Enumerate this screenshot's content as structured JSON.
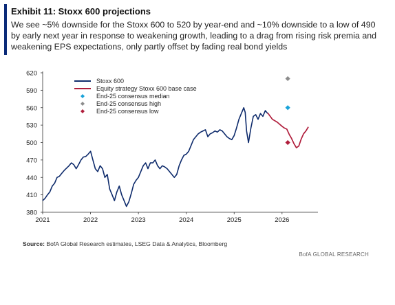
{
  "header": {
    "title": "Exhibit 11: Stoxx 600 projections",
    "subtitle": "We see ~5% downside for the Stoxx 600 to 520 by year-end and ~10% downside to a low of 490 by early next year in response to weakening growth, leading to a drag from rising risk premia and weakening EPS expectations, only partly offset by fading real bond yields"
  },
  "footer": {
    "source_label": "Source:",
    "source_text": "BofA Global Research estimates, LSEG Data & Analytics, Bloomberg",
    "brand": "BofA GLOBAL RESEARCH"
  },
  "colors": {
    "accent": "#0a2a78",
    "stoxx": "#0d2a6b",
    "base_case": "#b01e3c",
    "median": "#1aa3d9",
    "high": "#8c8c8c",
    "low": "#b01e3c"
  },
  "chart_data": {
    "type": "line",
    "title": "",
    "xlabel": "",
    "ylabel": "",
    "ylim": [
      380,
      620
    ],
    "xlim": [
      2021,
      2026.75
    ],
    "y_ticks": [
      380,
      410,
      440,
      470,
      500,
      530,
      560,
      590,
      620
    ],
    "x_ticks": [
      "2021",
      "2022",
      "2023",
      "2024",
      "2025",
      "2026"
    ],
    "grid": false,
    "legend_position": "top-left",
    "series": [
      {
        "name": "Stoxx 600",
        "type": "line",
        "x": [
          2021.0,
          2021.05,
          2021.1,
          2021.15,
          2021.2,
          2021.25,
          2021.3,
          2021.35,
          2021.4,
          2021.45,
          2021.5,
          2021.55,
          2021.6,
          2021.65,
          2021.7,
          2021.75,
          2021.8,
          2021.85,
          2021.9,
          2021.95,
          2022.0,
          2022.05,
          2022.1,
          2022.15,
          2022.2,
          2022.25,
          2022.3,
          2022.35,
          2022.4,
          2022.45,
          2022.5,
          2022.55,
          2022.6,
          2022.65,
          2022.7,
          2022.75,
          2022.8,
          2022.85,
          2022.9,
          2022.95,
          2023.0,
          2023.05,
          2023.1,
          2023.15,
          2023.2,
          2023.25,
          2023.3,
          2023.35,
          2023.4,
          2023.45,
          2023.5,
          2023.55,
          2023.6,
          2023.65,
          2023.7,
          2023.75,
          2023.8,
          2023.85,
          2023.9,
          2023.95,
          2024.0,
          2024.05,
          2024.1,
          2024.15,
          2024.2,
          2024.25,
          2024.3,
          2024.35,
          2024.4,
          2024.45,
          2024.5,
          2024.55,
          2024.6,
          2024.65,
          2024.7,
          2024.75,
          2024.8,
          2024.85,
          2024.9,
          2024.95,
          2025.0,
          2025.05,
          2025.1,
          2025.15,
          2025.2,
          2025.23,
          2025.26,
          2025.3,
          2025.35,
          2025.4,
          2025.45,
          2025.5,
          2025.55,
          2025.6,
          2025.65,
          2025.7
        ],
        "values": [
          400,
          404,
          410,
          415,
          425,
          430,
          440,
          442,
          447,
          452,
          456,
          460,
          465,
          462,
          455,
          462,
          470,
          475,
          476,
          480,
          485,
          470,
          455,
          450,
          460,
          455,
          440,
          445,
          420,
          410,
          400,
          415,
          425,
          410,
          400,
          390,
          398,
          412,
          428,
          435,
          440,
          450,
          460,
          465,
          455,
          465,
          465,
          470,
          460,
          455,
          460,
          458,
          455,
          450,
          445,
          440,
          445,
          460,
          470,
          478,
          480,
          485,
          495,
          505,
          510,
          515,
          518,
          520,
          522,
          510,
          515,
          517,
          520,
          518,
          522,
          520,
          515,
          510,
          507,
          505,
          512,
          525,
          540,
          550,
          560,
          552,
          520,
          500,
          525,
          545,
          548,
          540,
          550,
          545,
          555,
          550
        ]
      },
      {
        "name": "Equity strategy Stoxx 600 base case",
        "type": "line",
        "x": [
          2025.7,
          2025.8,
          2025.9,
          2026.0,
          2026.05,
          2026.1,
          2026.15,
          2026.2,
          2026.25,
          2026.3,
          2026.35,
          2026.4,
          2026.45,
          2026.5,
          2026.55
        ],
        "values": [
          551,
          540,
          535,
          528,
          525,
          523,
          514,
          507,
          498,
          491,
          494,
          506,
          515,
          520,
          527
        ]
      },
      {
        "name": "End-25 consensus median",
        "type": "scatter",
        "x": [
          2026.12
        ],
        "values": [
          560
        ]
      },
      {
        "name": "End-25 consensus high",
        "type": "scatter",
        "x": [
          2026.12
        ],
        "values": [
          610
        ]
      },
      {
        "name": "End-25 consensus low",
        "type": "scatter",
        "x": [
          2026.12
        ],
        "values": [
          500
        ]
      }
    ]
  }
}
